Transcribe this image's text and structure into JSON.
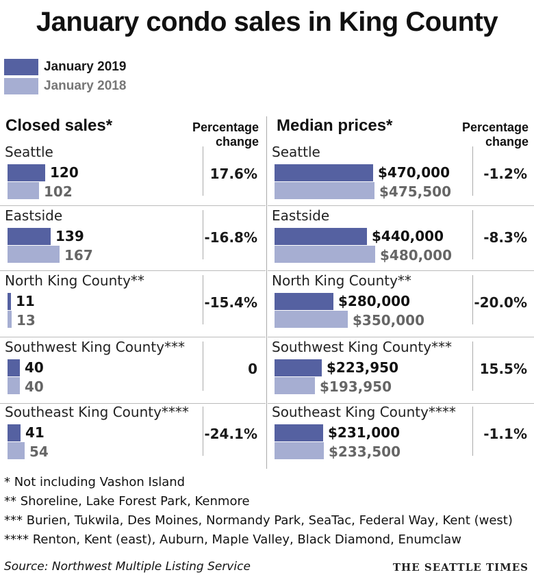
{
  "title": "January condo sales in King County",
  "colors": {
    "y2019": "#5561a1",
    "y2018": "#a6aed2",
    "text2018": "#666666"
  },
  "legend": {
    "y2019": "January 2019",
    "y2018": "January 2018"
  },
  "headers": {
    "closed": "Closed sales*",
    "median": "Median prices*",
    "pct_line1": "Percentage",
    "pct_line2": "change"
  },
  "chart_data": [
    {
      "type": "bar",
      "title": "Closed sales*",
      "categories": [
        "Seattle",
        "Eastside",
        "North King County**",
        "Southwest King County***",
        "Southeast King County****"
      ],
      "series": [
        {
          "name": "January 2019",
          "values": [
            120,
            139,
            11,
            40,
            41
          ],
          "labels": [
            "120",
            "139",
            "11",
            "40",
            "41"
          ]
        },
        {
          "name": "January 2018",
          "values": [
            102,
            167,
            13,
            40,
            54
          ],
          "labels": [
            "102",
            "167",
            "13",
            "40",
            "54"
          ]
        }
      ],
      "pct_change": [
        "17.6%",
        "-16.8%",
        "-15.4%",
        "0",
        "-24.1%"
      ],
      "xlim": [
        0,
        167
      ]
    },
    {
      "type": "bar",
      "title": "Median prices*",
      "categories": [
        "Seattle",
        "Eastside",
        "North King County**",
        "Southwest King County***",
        "Southeast King County****"
      ],
      "series": [
        {
          "name": "January 2019",
          "values": [
            470000,
            440000,
            280000,
            223950,
            231000
          ],
          "labels": [
            "$470,000",
            "$440,000",
            "$280,000",
            "$223,950",
            "$231,000"
          ]
        },
        {
          "name": "January 2018",
          "values": [
            475500,
            480000,
            350000,
            193950,
            233500
          ],
          "labels": [
            "$475,500",
            "$480,000",
            "$350,000",
            "$193,950",
            "$233,500"
          ]
        }
      ],
      "pct_change": [
        "-1.2%",
        "-8.3%",
        "-20.0%",
        "15.5%",
        "-1.1%"
      ],
      "xlim": [
        0,
        480000
      ]
    }
  ],
  "footnotes": [
    "* Not including Vashon Island",
    "** Shoreline, Lake Forest Park, Kenmore",
    "*** Burien, Tukwila, Des Moines, Normandy Park, SeaTac, Federal Way, Kent (west)",
    "**** Renton, Kent (east), Auburn, Maple Valley, Black Diamond, Enumclaw"
  ],
  "source": "Source: Northwest Multiple Listing Service",
  "brand": "THE SEATTLE TIMES"
}
